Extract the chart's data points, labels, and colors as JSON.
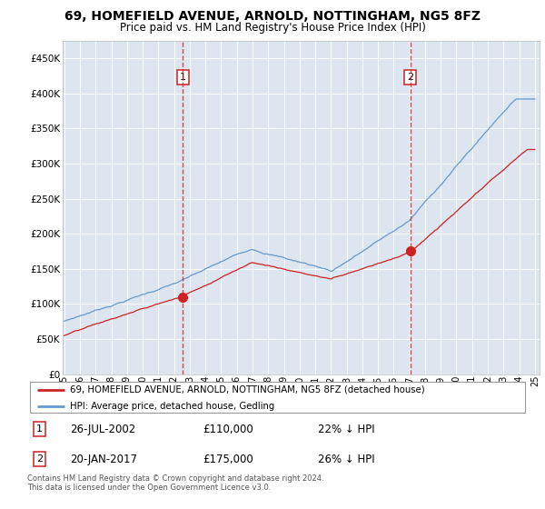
{
  "title": "69, HOMEFIELD AVENUE, ARNOLD, NOTTINGHAM, NG5 8FZ",
  "subtitle": "Price paid vs. HM Land Registry's House Price Index (HPI)",
  "legend_line1": "69, HOMEFIELD AVENUE, ARNOLD, NOTTINGHAM, NG5 8FZ (detached house)",
  "legend_line2": "HPI: Average price, detached house, Gedling",
  "annotation1": {
    "num": "1",
    "date": "26-JUL-2002",
    "price": "£110,000",
    "hpi": "22% ↓ HPI"
  },
  "annotation2": {
    "num": "2",
    "date": "20-JAN-2017",
    "price": "£175,000",
    "hpi": "26% ↓ HPI"
  },
  "copyright": "Contains HM Land Registry data © Crown copyright and database right 2024.\nThis data is licensed under the Open Government Licence v3.0.",
  "ylim": [
    0,
    475000
  ],
  "yticks": [
    0,
    50000,
    100000,
    150000,
    200000,
    250000,
    300000,
    350000,
    400000,
    450000
  ],
  "hpi_color": "#6699cc",
  "price_color": "#cc2222",
  "dashed_color": "#cc2222",
  "bg_color": "#dde5f0",
  "grid_color": "#ffffff",
  "year_start": 1995,
  "year_end": 2025,
  "marker1_year": 2002.57,
  "marker2_year": 2017.05,
  "marker1_price": 110000,
  "marker2_price": 175000
}
